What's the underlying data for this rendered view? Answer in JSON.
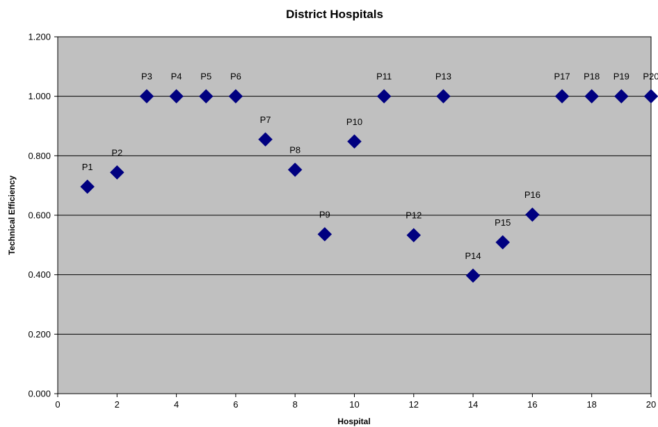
{
  "chart_data": {
    "type": "scatter",
    "title": "District Hospitals",
    "xlabel": "Hospital",
    "ylabel": "Technical Efficiency",
    "xlim": [
      0,
      20
    ],
    "ylim": [
      0,
      1.2
    ],
    "xticks": [
      "0",
      "2",
      "4",
      "6",
      "8",
      "10",
      "12",
      "14",
      "16",
      "18",
      "20"
    ],
    "yticks": [
      "0.000",
      "0.200",
      "0.400",
      "0.600",
      "0.800",
      "1.000",
      "1.200"
    ],
    "grid": "horizontal",
    "legend": "none",
    "marker": "diamond",
    "colors": {
      "marker": "#000080",
      "plot_background": "#c0c0c0",
      "gridline": "#000000"
    },
    "points": [
      {
        "label": "P1",
        "x": 1,
        "y": 0.696
      },
      {
        "label": "P2",
        "x": 2,
        "y": 0.744
      },
      {
        "label": "P3",
        "x": 3,
        "y": 1.0
      },
      {
        "label": "P4",
        "x": 4,
        "y": 1.0
      },
      {
        "label": "P5",
        "x": 5,
        "y": 1.0
      },
      {
        "label": "P6",
        "x": 6,
        "y": 1.0
      },
      {
        "label": "P7",
        "x": 7,
        "y": 0.855
      },
      {
        "label": "P8",
        "x": 8,
        "y": 0.753
      },
      {
        "label": "P9",
        "x": 9,
        "y": 0.536
      },
      {
        "label": "P10",
        "x": 10,
        "y": 0.848
      },
      {
        "label": "P11",
        "x": 11,
        "y": 1.0
      },
      {
        "label": "P12",
        "x": 12,
        "y": 0.533
      },
      {
        "label": "P13",
        "x": 13,
        "y": 1.0
      },
      {
        "label": "P14",
        "x": 14,
        "y": 0.397
      },
      {
        "label": "P15",
        "x": 15,
        "y": 0.509
      },
      {
        "label": "P16",
        "x": 16,
        "y": 0.602
      },
      {
        "label": "P17",
        "x": 17,
        "y": 1.0
      },
      {
        "label": "P18",
        "x": 18,
        "y": 1.0
      },
      {
        "label": "P19",
        "x": 19,
        "y": 1.0
      },
      {
        "label": "P20",
        "x": 20,
        "y": 1.0
      }
    ]
  }
}
